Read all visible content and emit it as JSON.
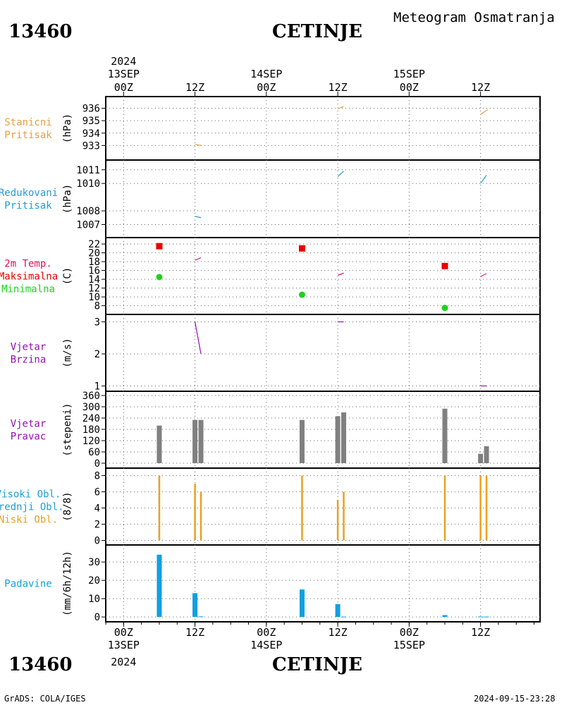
{
  "header": {
    "station_id": "13460",
    "station_name": "CETINJE",
    "subtitle": "Meteogram Osmatranja"
  },
  "footer": {
    "station_id": "13460",
    "station_name": "CETINJE",
    "credit": "GrADS: COLA/IGES",
    "timestamp": "2024-09-15-23:28"
  },
  "time_axis": {
    "top_year": "2024",
    "bottom_year": "2024",
    "ticks": [
      {
        "t": 0,
        "hour": "00Z",
        "date": "13SEP"
      },
      {
        "t": 12,
        "hour": "12Z",
        "date": ""
      },
      {
        "t": 24,
        "hour": "00Z",
        "date": "14SEP"
      },
      {
        "t": 36,
        "hour": "12Z",
        "date": ""
      },
      {
        "t": 48,
        "hour": "00Z",
        "date": "15SEP"
      },
      {
        "t": 60,
        "hour": "12Z",
        "date": ""
      }
    ],
    "range": [
      -3,
      70
    ]
  },
  "colors": {
    "pressure_station": "#e8a040",
    "pressure_reduced": "#1e9ed8",
    "temp_title": "#e0105a",
    "temp_max": "#e80000",
    "temp_min": "#20d020",
    "temp_line": "#d81870",
    "wind": "#9010b0",
    "bars_gray": "#808080",
    "cloud": "#e8a020",
    "precip": "#10a0e0"
  },
  "chart_data": [
    {
      "id": "stanicni_pritisak",
      "type": "line",
      "labels": [
        "Stanicni",
        "Pritisak"
      ],
      "ylabel": "(hPa)",
      "ylim": [
        932.0,
        936.6
      ],
      "yticks": [
        933,
        934,
        935,
        936
      ],
      "segments": [
        {
          "x": [
            12,
            13
          ],
          "y": [
            933.1,
            933.0
          ]
        },
        {
          "x": [
            36,
            37
          ],
          "y": [
            935.95,
            936.15
          ]
        },
        {
          "x": [
            60,
            61.2
          ],
          "y": [
            935.5,
            935.9
          ]
        }
      ]
    },
    {
      "id": "redukovani_pritisak",
      "type": "line",
      "labels": [
        "Redukovani",
        "Pritisak"
      ],
      "ylabel": "(hPa)",
      "ylim": [
        1006.2,
        1011.4
      ],
      "yticks": [
        1007,
        1008,
        1010,
        1011
      ],
      "segments": [
        {
          "x": [
            12,
            13
          ],
          "y": [
            1007.6,
            1007.5
          ]
        },
        {
          "x": [
            36,
            37
          ],
          "y": [
            1010.5,
            1010.9
          ]
        },
        {
          "x": [
            60,
            61
          ],
          "y": [
            1010.0,
            1010.6
          ]
        }
      ]
    },
    {
      "id": "temperatura",
      "type": "scatter",
      "labels": [
        "2m Temp.",
        "Maksimalna",
        "Minimalna"
      ],
      "ylabel": "(C)",
      "ylim": [
        6.5,
        22.5
      ],
      "yticks": [
        8,
        10,
        12,
        14,
        16,
        18,
        20,
        22
      ],
      "max_points": [
        {
          "x": 6,
          "y": 21.5
        },
        {
          "x": 30,
          "y": 21.0
        },
        {
          "x": 54,
          "y": 17.0
        }
      ],
      "min_points": [
        {
          "x": 6,
          "y": 14.5
        },
        {
          "x": 30,
          "y": 10.5
        },
        {
          "x": 54,
          "y": 7.5
        }
      ],
      "segments": [
        {
          "x": [
            12,
            13
          ],
          "y": [
            18.3,
            18.9
          ]
        },
        {
          "x": [
            36,
            37
          ],
          "y": [
            14.9,
            15.4
          ]
        },
        {
          "x": [
            60,
            61
          ],
          "y": [
            14.6,
            15.3
          ]
        }
      ]
    },
    {
      "id": "vjetar_brzina",
      "type": "line",
      "labels": [
        "Vjetar",
        "Brzina"
      ],
      "ylabel": "(m/s)",
      "ylim": [
        0.9,
        3.1
      ],
      "yticks": [
        1,
        2,
        3
      ],
      "segments": [
        {
          "x": [
            12,
            13
          ],
          "y": [
            3.0,
            2.0
          ]
        },
        {
          "x": [
            36,
            37
          ],
          "y": [
            3.0,
            3.0
          ]
        },
        {
          "x": [
            60,
            61
          ],
          "y": [
            1.0,
            1.0
          ]
        }
      ]
    },
    {
      "id": "vjetar_pravac",
      "type": "bar",
      "labels": [
        "Vjetar",
        "Pravac"
      ],
      "ylabel": "(stepeni)",
      "ylim": [
        -15,
        360
      ],
      "yticks": [
        0,
        60,
        120,
        180,
        240,
        300,
        360
      ],
      "ytick_labels": [
        "0",
        "60",
        "120",
        "180",
        "240",
        "300",
        "360"
      ],
      "bars": [
        {
          "x": 6,
          "v": 200
        },
        {
          "x": 12,
          "v": 230
        },
        {
          "x": 13,
          "v": 230
        },
        {
          "x": 30,
          "v": 230
        },
        {
          "x": 36,
          "v": 250
        },
        {
          "x": 37,
          "v": 270
        },
        {
          "x": 54,
          "v": 290
        },
        {
          "x": 60,
          "v": 50
        },
        {
          "x": 61,
          "v": 90
        }
      ]
    },
    {
      "id": "oblaci",
      "type": "bar",
      "labels": [
        "Visoki Obl.",
        "Srednji Obl.",
        "Niski Obl."
      ],
      "ylabel": "(8/8)",
      "ylim": [
        -0.3,
        8.4
      ],
      "yticks": [
        0,
        2,
        4,
        6,
        8
      ],
      "bars": [
        {
          "x": 6,
          "v": 8
        },
        {
          "x": 12,
          "v": 7
        },
        {
          "x": 13,
          "v": 6
        },
        {
          "x": 30,
          "v": 8
        },
        {
          "x": 36,
          "v": 5
        },
        {
          "x": 37,
          "v": 6
        },
        {
          "x": 54,
          "v": 8
        },
        {
          "x": 60,
          "v": 8
        },
        {
          "x": 61,
          "v": 8
        }
      ]
    },
    {
      "id": "padavine",
      "type": "bar",
      "labels": [
        "Padavine"
      ],
      "ylabel": "(mm/6h/12h)",
      "ylim": [
        -1.5,
        37
      ],
      "yticks": [
        0,
        10,
        20,
        30
      ],
      "bars": [
        {
          "x": 6,
          "v": 34,
          "w": 0.9
        },
        {
          "x": 12,
          "v": 13,
          "w": 0.9
        },
        {
          "x": 13,
          "v": 0.3,
          "w": 0.9
        },
        {
          "x": 30,
          "v": 15,
          "w": 0.9
        },
        {
          "x": 36,
          "v": 7,
          "w": 0.9
        },
        {
          "x": 37,
          "v": 0.2,
          "w": 0.9
        },
        {
          "x": 54,
          "v": 1,
          "w": 0.9
        },
        {
          "x": 60,
          "v": 0.2,
          "w": 0.9
        },
        {
          "x": 61,
          "v": 0.2,
          "w": 0.9
        }
      ]
    }
  ]
}
